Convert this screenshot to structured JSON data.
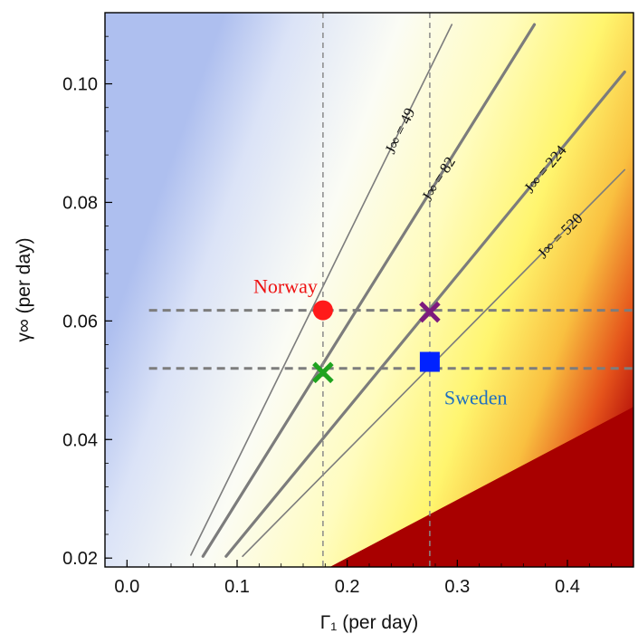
{
  "chart_data": {
    "type": "contour",
    "xlabel": "Γ₁ (per day)",
    "ylabel": "γ∞ (per day)",
    "xlim": [
      -0.02,
      0.46
    ],
    "ylim": [
      0.0185,
      0.112
    ],
    "xticks": [
      0.0,
      0.1,
      0.2,
      0.3,
      0.4
    ],
    "xtick_labels": [
      "0.0",
      "0.1",
      "0.2",
      "0.3",
      "0.4"
    ],
    "yticks": [
      0.02,
      0.04,
      0.06,
      0.08,
      0.1
    ],
    "ytick_labels": [
      "0.02",
      "0.04",
      "0.06",
      "0.08",
      "0.10"
    ],
    "background": {
      "description": "gradient from blue (low Γ₁) through white and yellow to dark red (high Γ₁, low γ∞)",
      "colors": [
        "#aebfef",
        "#ffffff",
        "#fff68a",
        "#f6b43a",
        "#a80000"
      ]
    },
    "contours": [
      {
        "label": "J∞ = 49",
        "x": [
          0.058,
          0.295
        ],
        "y": [
          0.0205,
          0.11
        ],
        "weight": "thin"
      },
      {
        "label": "J∞ = 82",
        "x": [
          0.069,
          0.37
        ],
        "y": [
          0.0203,
          0.11
        ],
        "weight": "thick"
      },
      {
        "label": "J∞ = 224",
        "x": [
          0.09,
          0.452
        ],
        "y": [
          0.0203,
          0.102
        ],
        "weight": "thick"
      },
      {
        "label": "J∞ = 520",
        "x": [
          0.105,
          0.452
        ],
        "y": [
          0.0203,
          0.0855
        ],
        "weight": "thin"
      }
    ],
    "reference_lines": {
      "vertical_x": [
        0.178,
        0.275
      ],
      "horizontal_y": [
        0.0618,
        0.052
      ],
      "horizontal_x_range": [
        0.02,
        0.46
      ]
    },
    "points": [
      {
        "name": "Norway",
        "x": 0.178,
        "y": 0.0618,
        "marker": "circle",
        "color": "#ff1a1a"
      },
      {
        "name": "Sweden",
        "x": 0.275,
        "y": 0.0531,
        "marker": "square",
        "color": "#0022ff"
      },
      {
        "name": "",
        "x": 0.275,
        "y": 0.0615,
        "marker": "x",
        "color": "#7d1b7e"
      },
      {
        "name": "",
        "x": 0.178,
        "y": 0.0513,
        "marker": "x",
        "color": "#1fa31f"
      }
    ],
    "labels": {
      "Norway": {
        "text": "Norway",
        "color": "#ee1111"
      },
      "Sweden": {
        "text": "Sweden",
        "color": "#1f6fc0"
      }
    }
  }
}
